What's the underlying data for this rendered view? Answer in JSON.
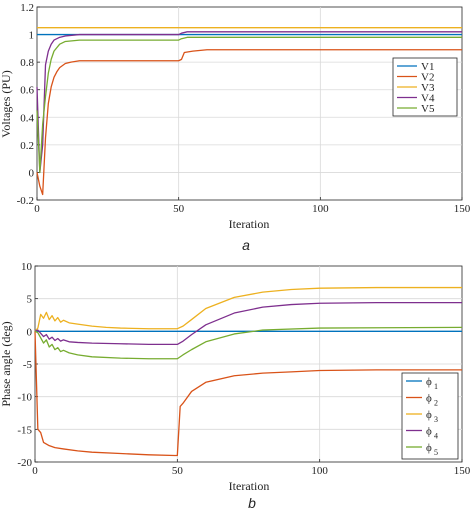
{
  "chart_data": [
    {
      "type": "line",
      "panel_label": "a",
      "xlabel": "Iteration",
      "ylabel": "Voltages (PU)",
      "xlim": [
        0,
        150
      ],
      "ylim": [
        -0.2,
        1.2
      ],
      "xticks": [
        0,
        50,
        100,
        150
      ],
      "xtick_labels": [
        "0",
        "50",
        "100",
        "150"
      ],
      "yticks": [
        -0.2,
        0,
        0.2,
        0.4,
        0.6,
        0.8,
        1,
        1.2
      ],
      "ytick_labels": [
        "-0.2",
        "0",
        "0.2",
        "0.4",
        "0.6",
        "0.8",
        "1",
        "1.2"
      ],
      "grid": true,
      "legend_position": "right",
      "series": [
        {
          "name": "V1",
          "legend": "V1",
          "color": "#0072BD",
          "x": [
            0,
            2,
            3,
            5,
            8,
            10,
            15,
            20,
            30,
            40,
            50,
            51,
            52,
            55,
            60,
            80,
            100,
            150
          ],
          "y": [
            1.0,
            1.0,
            1.0,
            1.0,
            1.0,
            1.0,
            1.0,
            1.0,
            1.0,
            1.0,
            1.0,
            1.0,
            1.0,
            1.0,
            1.0,
            1.0,
            1.0,
            1.0
          ]
        },
        {
          "name": "V2",
          "legend": "V2",
          "color": "#D95319",
          "x": [
            0,
            1,
            2,
            3,
            4,
            5,
            6,
            7,
            8,
            10,
            12,
            15,
            20,
            30,
            40,
            50,
            51,
            52,
            55,
            60,
            80,
            100,
            150
          ],
          "y": [
            0.0,
            -0.1,
            -0.16,
            0.25,
            0.5,
            0.62,
            0.69,
            0.73,
            0.76,
            0.79,
            0.8,
            0.81,
            0.81,
            0.81,
            0.81,
            0.81,
            0.82,
            0.87,
            0.88,
            0.89,
            0.89,
            0.89,
            0.89
          ]
        },
        {
          "name": "V3",
          "legend": "V3",
          "color": "#EDB120",
          "x": [
            0,
            1,
            2,
            3,
            5,
            8,
            10,
            20,
            50,
            100,
            150
          ],
          "y": [
            1.05,
            1.05,
            1.05,
            1.05,
            1.05,
            1.05,
            1.05,
            1.05,
            1.05,
            1.05,
            1.05
          ]
        },
        {
          "name": "V4",
          "legend": "V4",
          "color": "#7E2F8E",
          "x": [
            0,
            1,
            2,
            3,
            4,
            5,
            6,
            8,
            10,
            15,
            20,
            30,
            50,
            51,
            53,
            60,
            100,
            150
          ],
          "y": [
            0.62,
            0.0,
            0.2,
            0.78,
            0.88,
            0.93,
            0.96,
            0.98,
            0.99,
            1.0,
            1.0,
            1.0,
            1.0,
            1.01,
            1.02,
            1.02,
            1.02,
            1.02
          ]
        },
        {
          "name": "V5",
          "legend": "V5",
          "color": "#77AC30",
          "x": [
            0,
            1,
            2,
            3,
            4,
            5,
            6,
            8,
            10,
            15,
            20,
            30,
            50,
            51,
            53,
            60,
            100,
            150
          ],
          "y": [
            0.45,
            0.0,
            0.35,
            0.55,
            0.72,
            0.82,
            0.88,
            0.93,
            0.95,
            0.96,
            0.96,
            0.96,
            0.96,
            0.97,
            0.98,
            0.98,
            0.98,
            0.98
          ]
        }
      ]
    },
    {
      "type": "line",
      "panel_label": "b",
      "xlabel": "Iteration",
      "ylabel": "Phase angle (deg)",
      "xlim": [
        0,
        150
      ],
      "ylim": [
        -20,
        10
      ],
      "xticks": [
        0,
        50,
        100,
        150
      ],
      "xtick_labels": [
        "0",
        "50",
        "100",
        "150"
      ],
      "yticks": [
        -20,
        -15,
        -10,
        -5,
        0,
        5,
        10
      ],
      "ytick_labels": [
        "-20",
        "-15",
        "-10",
        "-5",
        "0",
        "5",
        "10"
      ],
      "grid": true,
      "legend_position": "lower right",
      "series": [
        {
          "name": "phi1",
          "legend_symbol": "ϕ",
          "legend_sub": "1",
          "color": "#0072BD",
          "x": [
            0,
            50,
            100,
            150
          ],
          "y": [
            0,
            0,
            0,
            0
          ]
        },
        {
          "name": "phi2",
          "legend_symbol": "ϕ",
          "legend_sub": "2",
          "color": "#D95319",
          "x": [
            0,
            1,
            2,
            3,
            5,
            7,
            10,
            15,
            20,
            30,
            40,
            49,
            50,
            51,
            52,
            55,
            60,
            70,
            80,
            90,
            100,
            120,
            150
          ],
          "y": [
            0,
            -15.0,
            -15.5,
            -17.0,
            -17.5,
            -17.8,
            -18.0,
            -18.3,
            -18.5,
            -18.7,
            -18.9,
            -19.0,
            -19.0,
            -11.5,
            -11.0,
            -9.2,
            -7.8,
            -6.8,
            -6.4,
            -6.2,
            -6.0,
            -5.9,
            -5.9
          ]
        },
        {
          "name": "phi3",
          "legend_symbol": "ϕ",
          "legend_sub": "3",
          "color": "#EDB120",
          "x": [
            0,
            1,
            2,
            3,
            4,
            5,
            6,
            7,
            8,
            9,
            10,
            12,
            15,
            20,
            25,
            30,
            40,
            50,
            52,
            55,
            60,
            70,
            80,
            90,
            100,
            120,
            150
          ],
          "y": [
            0,
            0.5,
            2.6,
            2.0,
            2.9,
            1.8,
            2.4,
            1.6,
            2.1,
            1.4,
            1.7,
            1.3,
            1.1,
            0.8,
            0.6,
            0.5,
            0.4,
            0.4,
            0.8,
            1.8,
            3.5,
            5.2,
            6.0,
            6.4,
            6.6,
            6.7,
            6.7
          ]
        },
        {
          "name": "phi4",
          "legend_symbol": "ϕ",
          "legend_sub": "4",
          "color": "#7E2F8E",
          "x": [
            0,
            1,
            2,
            3,
            4,
            5,
            6,
            7,
            8,
            9,
            10,
            12,
            15,
            20,
            30,
            40,
            50,
            52,
            55,
            60,
            70,
            80,
            90,
            100,
            120,
            150
          ],
          "y": [
            0,
            0.2,
            -0.3,
            -0.8,
            -0.5,
            -1.2,
            -0.9,
            -1.4,
            -1.1,
            -1.5,
            -1.3,
            -1.6,
            -1.7,
            -1.8,
            -1.9,
            -2.0,
            -2.0,
            -1.5,
            -0.5,
            1.0,
            2.8,
            3.7,
            4.1,
            4.3,
            4.4,
            4.4
          ]
        },
        {
          "name": "phi5",
          "legend_symbol": "ϕ",
          "legend_sub": "5",
          "color": "#77AC30",
          "x": [
            0,
            1,
            2,
            3,
            4,
            5,
            6,
            7,
            8,
            9,
            10,
            12,
            15,
            20,
            30,
            40,
            50,
            52,
            55,
            60,
            70,
            80,
            100,
            150
          ],
          "y": [
            0,
            -0.2,
            -1.0,
            -1.8,
            -1.3,
            -2.4,
            -2.0,
            -2.8,
            -2.5,
            -3.1,
            -2.9,
            -3.3,
            -3.6,
            -3.9,
            -4.1,
            -4.2,
            -4.2,
            -3.6,
            -2.8,
            -1.6,
            -0.4,
            0.2,
            0.5,
            0.6
          ]
        }
      ]
    }
  ]
}
